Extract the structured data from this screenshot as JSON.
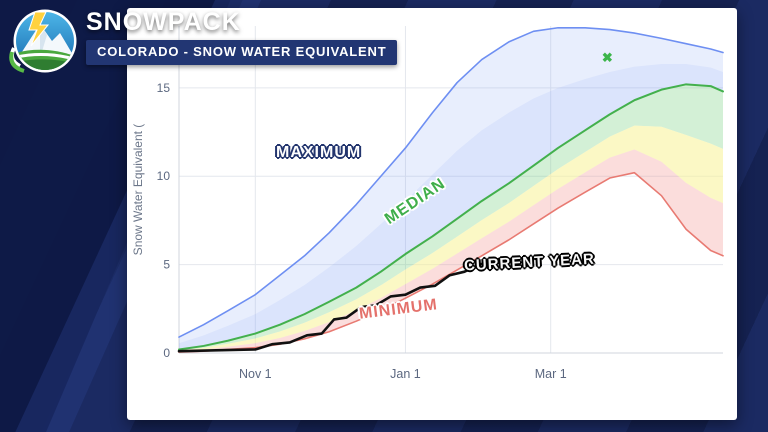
{
  "header": {
    "title": "SNOWPACK",
    "subtitle": "COLORADO - SNOW WATER EQUIVALENT",
    "logo_icon": "snowpack-mountain-logo"
  },
  "chart_data": {
    "type": "line",
    "title": "Colorado Snowpack - Snow Water Equivalent",
    "ylabel": "Snow Water Equivalent (",
    "yticks": [
      0,
      5,
      10,
      15
    ],
    "ylim": [
      0,
      18.5
    ],
    "xtick_days": [
      31,
      92,
      151
    ],
    "xtick_labels": [
      "Nov 1",
      "Jan 1",
      "Mar 1"
    ],
    "x_days_range": [
      0,
      221
    ],
    "grid": true,
    "days": [
      0,
      10,
      20,
      31,
      41,
      51,
      61,
      72,
      82,
      92,
      103,
      113,
      123,
      134,
      144,
      154,
      165,
      175,
      185,
      196,
      206,
      216,
      221
    ],
    "series": [
      {
        "name": "Maximum",
        "color": "#6e8ff2",
        "values": [
          0.9,
          1.6,
          2.4,
          3.3,
          4.4,
          5.5,
          6.8,
          8.4,
          10.0,
          11.6,
          13.6,
          15.3,
          16.6,
          17.6,
          18.2,
          18.4,
          18.4,
          18.3,
          18.1,
          17.8,
          17.5,
          17.2,
          17.0
        ]
      },
      {
        "name": "Median",
        "color": "#43b04d",
        "values": [
          0.2,
          0.4,
          0.7,
          1.1,
          1.6,
          2.2,
          2.9,
          3.7,
          4.6,
          5.6,
          6.6,
          7.6,
          8.6,
          9.6,
          10.6,
          11.6,
          12.6,
          13.5,
          14.3,
          14.9,
          15.2,
          15.1,
          14.8
        ]
      },
      {
        "name": "Minimum",
        "color": "#e87a72",
        "values": [
          0.05,
          0.1,
          0.2,
          0.3,
          0.5,
          0.8,
          1.2,
          1.8,
          2.4,
          3.1,
          3.9,
          4.7,
          5.5,
          6.4,
          7.3,
          8.2,
          9.1,
          9.9,
          10.2,
          8.9,
          7.0,
          5.8,
          5.5
        ]
      },
      {
        "name": "Current Year",
        "color": "#111111",
        "days": [
          0,
          15,
          31,
          38,
          45,
          52,
          58,
          63,
          68,
          74,
          80,
          86,
          92,
          98,
          104,
          110,
          116,
          122,
          127,
          132
        ],
        "values": [
          0.1,
          0.15,
          0.2,
          0.5,
          0.6,
          1.0,
          1.1,
          1.9,
          2.0,
          2.6,
          2.7,
          3.2,
          3.3,
          3.7,
          3.8,
          4.4,
          4.6,
          5.0,
          5.2,
          5.4
        ]
      }
    ],
    "annotations": [
      {
        "text": "MAXIMUM"
      },
      {
        "text": "MEDIAN"
      },
      {
        "text": "CURRENT YEAR"
      },
      {
        "text": "MINIMUM"
      }
    ],
    "marker": {
      "day": 174,
      "value": 16.7,
      "color": "#3cb54a",
      "glyph": "✖"
    },
    "band_colors": {
      "blue_outer": "rgba(125,158,245,0.18)",
      "blue_inner": "rgba(125,158,245,0.28)",
      "green": "rgba(108,205,118,0.30)",
      "yellow": "rgba(248,243,150,0.55)",
      "pink": "rgba(244,150,146,0.32)"
    },
    "legend_position": "inline-labels"
  }
}
